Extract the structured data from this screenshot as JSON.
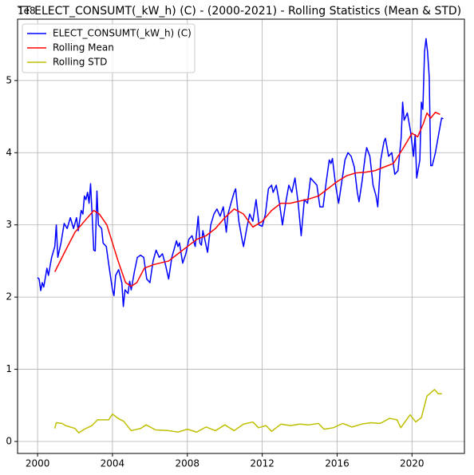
{
  "chart_data": {
    "type": "line",
    "title": "TT ELECT_CONSUMT(_kW_h) (C) - (2000-2021) - Rolling Statistics (Mean & STD)",
    "y_offset_label": "1e8",
    "xlim": [
      1998.93,
      2022.8
    ],
    "xticks": [
      2000,
      2004,
      2008,
      2012,
      2016,
      2020
    ],
    "ylim": [
      -0.166,
      5.85
    ],
    "yticks": [
      0,
      1,
      2,
      3,
      4,
      5
    ],
    "grid": true,
    "legend": "upper left",
    "series": [
      {
        "name": "ELECT_CONSUMT(_kW_h) (C)",
        "color": "#0000ff",
        "x": [
          2000.0,
          2000.08,
          2000.17,
          2000.25,
          2000.33,
          2000.5,
          2000.58,
          2000.75,
          2000.92,
          2001.0,
          2001.08,
          2001.25,
          2001.42,
          2001.58,
          2001.75,
          2001.92,
          2002.08,
          2002.17,
          2002.33,
          2002.42,
          2002.5,
          2002.58,
          2002.67,
          2002.75,
          2002.83,
          2002.92,
          2003.0,
          2003.08,
          2003.17,
          2003.25,
          2003.42,
          2003.5,
          2003.67,
          2003.83,
          2004.0,
          2004.08,
          2004.17,
          2004.33,
          2004.5,
          2004.58,
          2004.67,
          2004.83,
          2004.92,
          2005.0,
          2005.17,
          2005.33,
          2005.5,
          2005.67,
          2005.83,
          2006.0,
          2006.17,
          2006.33,
          2006.5,
          2006.67,
          2006.83,
          2007.0,
          2007.17,
          2007.42,
          2007.5,
          2007.58,
          2007.75,
          2007.92,
          2008.08,
          2008.25,
          2008.42,
          2008.58,
          2008.67,
          2008.75,
          2008.83,
          2009.08,
          2009.25,
          2009.42,
          2009.58,
          2009.75,
          2009.92,
          2010.08,
          2010.17,
          2010.33,
          2010.5,
          2010.58,
          2010.75,
          2010.92,
          2011.0,
          2011.17,
          2011.33,
          2011.5,
          2011.67,
          2011.83,
          2012.0,
          2012.17,
          2012.33,
          2012.5,
          2012.58,
          2012.75,
          2012.92,
          2013.08,
          2013.25,
          2013.42,
          2013.58,
          2013.75,
          2013.92,
          2014.08,
          2014.25,
          2014.42,
          2014.58,
          2014.75,
          2014.92,
          2015.08,
          2015.25,
          2015.42,
          2015.58,
          2015.67,
          2015.75,
          2015.92,
          2016.08,
          2016.25,
          2016.42,
          2016.58,
          2016.75,
          2016.92,
          2017.08,
          2017.17,
          2017.33,
          2017.5,
          2017.58,
          2017.75,
          2017.92,
          2018.08,
          2018.17,
          2018.33,
          2018.5,
          2018.58,
          2018.75,
          2018.92,
          2019.08,
          2019.25,
          2019.42,
          2019.5,
          2019.58,
          2019.75,
          2019.92,
          2020.08,
          2020.17,
          2020.25,
          2020.42,
          2020.5,
          2020.58,
          2020.67,
          2020.75,
          2020.83,
          2020.92,
          2021.0,
          2021.08,
          2021.25,
          2021.42,
          2021.58,
          2021.67
        ],
        "values": [
          2.27,
          2.25,
          2.09,
          2.2,
          2.14,
          2.4,
          2.3,
          2.55,
          2.7,
          3.0,
          2.55,
          2.75,
          3.02,
          2.95,
          3.1,
          2.95,
          3.1,
          2.92,
          3.2,
          3.15,
          3.4,
          3.35,
          3.45,
          3.3,
          3.57,
          3.1,
          2.65,
          2.64,
          3.47,
          3.0,
          2.95,
          2.75,
          2.7,
          2.4,
          2.1,
          2.02,
          2.3,
          2.38,
          2.2,
          1.87,
          2.1,
          2.05,
          2.22,
          2.1,
          2.35,
          2.55,
          2.58,
          2.55,
          2.25,
          2.2,
          2.5,
          2.65,
          2.55,
          2.6,
          2.45,
          2.25,
          2.55,
          2.78,
          2.7,
          2.75,
          2.47,
          2.6,
          2.8,
          2.85,
          2.7,
          3.12,
          2.75,
          2.72,
          2.92,
          2.62,
          3.0,
          3.15,
          3.22,
          3.12,
          3.25,
          2.9,
          3.15,
          3.3,
          3.45,
          3.5,
          3.05,
          2.8,
          2.7,
          2.95,
          3.15,
          3.05,
          3.35,
          3.0,
          2.98,
          3.15,
          3.5,
          3.55,
          3.45,
          3.55,
          3.3,
          3.0,
          3.3,
          3.55,
          3.45,
          3.65,
          3.3,
          2.85,
          3.35,
          3.3,
          3.65,
          3.6,
          3.55,
          3.25,
          3.25,
          3.6,
          3.9,
          3.85,
          3.92,
          3.55,
          3.3,
          3.6,
          3.9,
          4.0,
          3.95,
          3.8,
          3.45,
          3.32,
          3.6,
          3.95,
          4.07,
          3.95,
          3.55,
          3.4,
          3.25,
          3.9,
          4.15,
          4.2,
          3.95,
          4.0,
          3.7,
          3.75,
          4.2,
          4.7,
          4.45,
          4.55,
          4.3,
          3.95,
          4.25,
          3.65,
          3.9,
          4.7,
          4.6,
          5.4,
          5.58,
          5.4,
          5.05,
          3.82,
          3.82,
          4.0,
          4.25,
          4.48,
          4.47
        ]
      },
      {
        "name": "Rolling Mean",
        "color": "#ff0000",
        "x": [
          2000.92,
          2001.5,
          2002.0,
          2002.5,
          2003.0,
          2003.3,
          2003.7,
          2004.0,
          2004.3,
          2004.7,
          2005.0,
          2005.3,
          2005.7,
          2006.2,
          2007.0,
          2007.5,
          2008.0,
          2008.5,
          2009.0,
          2009.5,
          2010.0,
          2010.5,
          2011.0,
          2011.5,
          2012.0,
          2012.5,
          2013.0,
          2013.5,
          2014.0,
          2014.5,
          2015.0,
          2015.5,
          2016.0,
          2016.5,
          2017.0,
          2017.5,
          2018.0,
          2018.5,
          2019.0,
          2019.5,
          2020.0,
          2020.3,
          2020.6,
          2020.8,
          2021.0,
          2021.25,
          2021.5
        ],
        "values": [
          2.35,
          2.65,
          2.9,
          3.05,
          3.2,
          3.15,
          3.0,
          2.75,
          2.5,
          2.2,
          2.15,
          2.2,
          2.4,
          2.45,
          2.5,
          2.6,
          2.7,
          2.8,
          2.85,
          2.95,
          3.1,
          3.22,
          3.15,
          2.97,
          3.05,
          3.2,
          3.3,
          3.3,
          3.33,
          3.36,
          3.4,
          3.5,
          3.6,
          3.68,
          3.72,
          3.73,
          3.75,
          3.8,
          3.85,
          4.05,
          4.27,
          4.22,
          4.4,
          4.55,
          4.48,
          4.56,
          4.53
        ]
      },
      {
        "name": "Rolling STD",
        "color": "#bfbf00",
        "x": [
          2000.92,
          2001.0,
          2001.3,
          2001.5,
          2002.0,
          2002.2,
          2002.5,
          2002.9,
          2003.2,
          2003.8,
          2004.0,
          2004.3,
          2004.6,
          2005.0,
          2005.5,
          2005.8,
          2006.3,
          2007.0,
          2007.5,
          2008.0,
          2008.5,
          2009.0,
          2009.5,
          2010.0,
          2010.5,
          2011.0,
          2011.5,
          2011.8,
          2012.2,
          2012.5,
          2013.0,
          2013.5,
          2014.0,
          2014.5,
          2015.0,
          2015.3,
          2015.8,
          2016.3,
          2016.8,
          2017.3,
          2017.8,
          2018.3,
          2018.8,
          2019.2,
          2019.4,
          2019.9,
          2020.2,
          2020.5,
          2020.8,
          2021.2,
          2021.4,
          2021.6
        ],
        "values": [
          0.18,
          0.26,
          0.25,
          0.22,
          0.18,
          0.12,
          0.17,
          0.22,
          0.3,
          0.3,
          0.38,
          0.32,
          0.28,
          0.15,
          0.18,
          0.23,
          0.16,
          0.15,
          0.13,
          0.17,
          0.13,
          0.2,
          0.15,
          0.23,
          0.15,
          0.24,
          0.27,
          0.19,
          0.22,
          0.14,
          0.24,
          0.22,
          0.24,
          0.23,
          0.25,
          0.17,
          0.19,
          0.25,
          0.2,
          0.24,
          0.26,
          0.25,
          0.32,
          0.3,
          0.19,
          0.37,
          0.27,
          0.33,
          0.63,
          0.72,
          0.66,
          0.66
        ]
      }
    ]
  }
}
